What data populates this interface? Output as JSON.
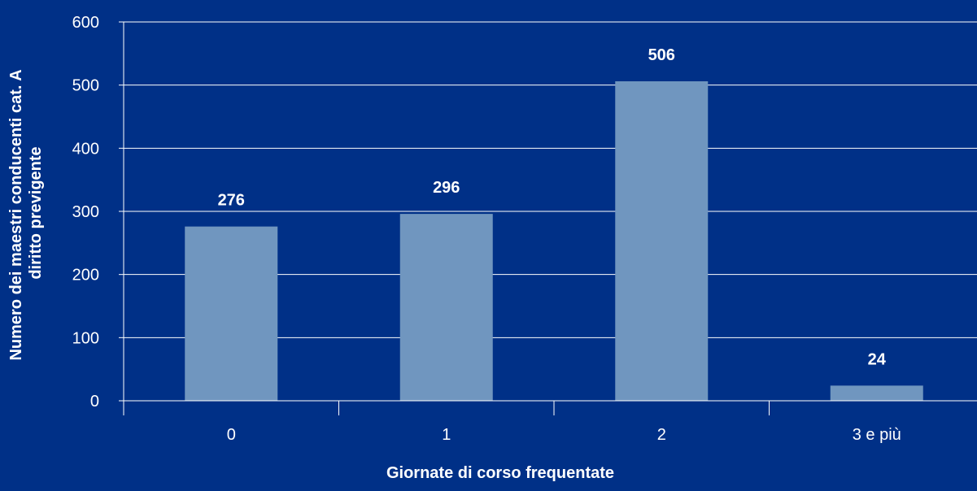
{
  "chart_data": {
    "type": "bar",
    "categories": [
      "0",
      "1",
      "2",
      "3 e più"
    ],
    "values": [
      276,
      296,
      506,
      24
    ],
    "data_labels": [
      "276",
      "296",
      "506",
      "24"
    ],
    "xlabel": "Giornate di corso frequentate",
    "ylabel_lines": [
      "Numero dei maestri conducenti cat. A",
      "diritto previgente"
    ],
    "ylim": [
      0,
      600
    ],
    "yticks": [
      "0",
      "100",
      "200",
      "300",
      "400",
      "500",
      "600"
    ],
    "ytick_values": [
      0,
      100,
      200,
      300,
      400,
      500,
      600
    ],
    "grid": true,
    "colors": {
      "background": "#003087",
      "bar": "#7096bf",
      "grid": "#ffffff",
      "text": "#ffffff"
    }
  }
}
